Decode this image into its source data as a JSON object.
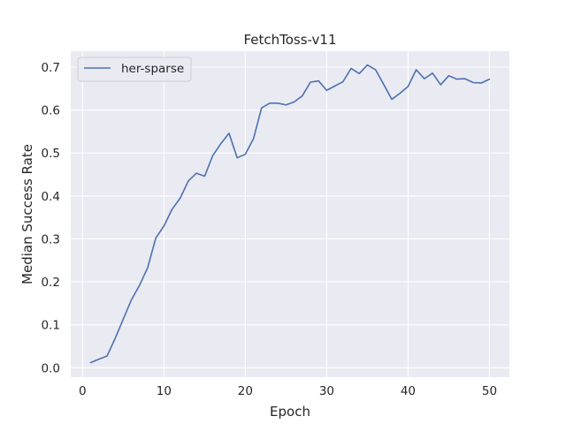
{
  "chart_data": {
    "type": "line",
    "title": "FetchToss-v11",
    "xlabel": "Epoch",
    "ylabel": "Median Success Rate",
    "xlim": [
      -1.45,
      52.45
    ],
    "ylim": [
      -0.022,
      0.737
    ],
    "xticks": [
      0,
      10,
      20,
      30,
      40,
      50
    ],
    "yticks": [
      0.0,
      0.1,
      0.2,
      0.3,
      0.4,
      0.5,
      0.6,
      0.7
    ],
    "ytick_labels": [
      "0.0",
      "0.1",
      "0.2",
      "0.3",
      "0.4",
      "0.5",
      "0.6",
      "0.7"
    ],
    "grid": true,
    "legend": "upper left",
    "background_color": "#eaeaf2",
    "series": [
      {
        "name": "her-sparse",
        "color": "#4c72b0",
        "x": [
          1,
          2,
          3,
          4,
          5,
          6,
          7,
          8,
          9,
          10,
          11,
          12,
          13,
          14,
          15,
          16,
          17,
          18,
          19,
          20,
          21,
          22,
          23,
          24,
          25,
          26,
          27,
          28,
          29,
          30,
          31,
          32,
          33,
          34,
          35,
          36,
          37,
          38,
          39,
          40,
          41,
          42,
          43,
          44,
          45,
          46,
          47,
          48,
          49,
          50
        ],
        "y": [
          0.012,
          0.02,
          0.027,
          0.068,
          0.113,
          0.158,
          0.192,
          0.233,
          0.302,
          0.33,
          0.369,
          0.395,
          0.435,
          0.453,
          0.446,
          0.494,
          0.522,
          0.546,
          0.489,
          0.497,
          0.533,
          0.605,
          0.616,
          0.616,
          0.612,
          0.619,
          0.633,
          0.665,
          0.668,
          0.646,
          0.656,
          0.666,
          0.697,
          0.685,
          0.705,
          0.694,
          0.66,
          0.625,
          0.639,
          0.655,
          0.694,
          0.673,
          0.686,
          0.659,
          0.68,
          0.672,
          0.673,
          0.664,
          0.663,
          0.672
        ]
      }
    ]
  }
}
